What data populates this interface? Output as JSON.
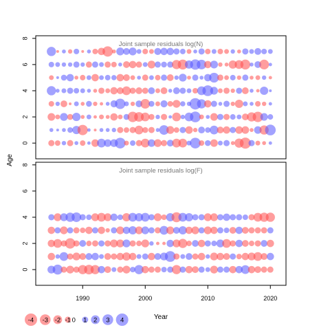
{
  "chart_data": {
    "type": "scatter",
    "ylabel": "Age",
    "xlabel": "Year",
    "xlim": [
      1982.5,
      2022.5
    ],
    "x_ticks": [
      1990,
      2000,
      2010,
      2020
    ],
    "colors": {
      "negative": "#ff4d4d",
      "positive": "#5555ff"
    },
    "bubble_scale_note": "bubble area proportional to |residual|; red = negative, blue = positive",
    "legend": {
      "placement": "bottom-left",
      "values": [
        -4,
        -3,
        -2,
        -1,
        0,
        1,
        2,
        3,
        4
      ],
      "labels": [
        "-4",
        "-3",
        "-2",
        "-1",
        "0",
        "1",
        "2",
        "3",
        "4"
      ]
    },
    "panels": [
      {
        "title": "Joint sample residuals log(N)",
        "ylim": [
          -1.2,
          8.2
        ],
        "y_ticks": [
          0,
          2,
          4,
          6,
          8
        ],
        "ages": [
          0,
          1,
          2,
          3,
          4,
          5,
          6,
          7
        ],
        "years": [
          1985,
          1986,
          1987,
          1988,
          1989,
          1990,
          1991,
          1992,
          1993,
          1994,
          1995,
          1996,
          1997,
          1998,
          1999,
          2000,
          2001,
          2002,
          2003,
          2004,
          2005,
          2006,
          2007,
          2008,
          2009,
          2010,
          2011,
          2012,
          2013,
          2014,
          2015,
          2016,
          2017,
          2018,
          2019,
          2020
        ],
        "residuals": [
          [
            -1.0,
            -0.8,
            0.5,
            -1.0,
            0.4,
            -0.8,
            0.3,
            -1.5,
            2.0,
            1.5,
            1.6,
            3.0,
            -0.6,
            0.8,
            -1.0,
            -2.0,
            1.5,
            -1.6,
            -1.0,
            1.2,
            -2.0,
            -2.0,
            0.6,
            3.0,
            -0.8,
            0.9,
            -1.5,
            0.6,
            1.0,
            -0.4,
            -2.2,
            -3.2,
            1.0,
            -0.6,
            -0.4,
            0.3
          ],
          [
            0.4,
            0.2,
            0.4,
            0.8,
            1.8,
            -2.8,
            0.3,
            -0.2,
            0.4,
            0.4,
            0.5,
            -1.0,
            -0.8,
            -1.0,
            -2.0,
            -0.9,
            -1.0,
            0.4,
            2.4,
            -1.6,
            -0.8,
            1.0,
            -1.5,
            -0.5,
            1.2,
            0.8,
            2.0,
            -1.2,
            -1.4,
            1.0,
            -1.5,
            -1.5,
            -0.4,
            1.5,
            -2.2,
            3.0
          ],
          [
            -1.5,
            -0.6,
            1.6,
            -0.9,
            1.8,
            -0.4,
            0.6,
            -0.3,
            -0.6,
            -0.4,
            -1.4,
            -0.6,
            0.9,
            -2.8,
            -2.4,
            -2.0,
            -0.9,
            0.5,
            -1.0,
            0.3,
            -2.0,
            0.5,
            2.0,
            3.0,
            -0.6,
            0.4,
            -1.5,
            1.0,
            -1.0,
            0.8,
            0.6,
            -1.2,
            -2.2,
            -2.8,
            1.5,
            0.8
          ],
          [
            -0.8,
            0.5,
            -1.2,
            -0.2,
            0.6,
            -0.4,
            0.9,
            -0.5,
            -0.3,
            0.4,
            1.3,
            2.8,
            0.6,
            -0.5,
            1.2,
            -2.4,
            0.9,
            -0.6,
            1.3,
            -0.8,
            -1.6,
            0.7,
            0.5,
            3.4,
            2.2,
            -1.4,
            1.0,
            0.4,
            1.0,
            -0.5,
            -1.8,
            0.6,
            0.4,
            -0.8,
            -0.5,
            0.3
          ],
          [
            2.2,
            0.4,
            0.6,
            1.0,
            0.8,
            0.6,
            0.4,
            -0.4,
            -1.0,
            -0.6,
            -1.4,
            -1.2,
            -2.0,
            -1.0,
            -1.2,
            -1.0,
            1.2,
            -0.6,
            -1.2,
            0.4,
            1.2,
            1.0,
            0.6,
            -0.8,
            2.0,
            3.0,
            1.6,
            -0.6,
            -1.0,
            -0.5,
            1.0,
            -1.2,
            0.4,
            -0.3,
            1.8,
            0.2
          ],
          [
            -0.6,
            0.2,
            0.9,
            1.4,
            -0.4,
            -0.8,
            0.6,
            -1.4,
            0.6,
            0.8,
            0.7,
            -1.4,
            -1.2,
            -0.6,
            0.4,
            -1.0,
            0.6,
            -0.8,
            1.0,
            -1.2,
            0.5,
            1.6,
            -0.4,
            1.0,
            0.4,
            1.4,
            2.5,
            -1.0,
            -0.6,
            0.8,
            -0.5,
            1.0,
            -0.4,
            -0.6,
            0.5,
            -0.3
          ],
          [
            0.8,
            0.6,
            0.5,
            0.5,
            1.0,
            0.5,
            -1.0,
            1.0,
            0.6,
            -1.0,
            -0.8,
            0.4,
            -1.2,
            -1.4,
            -1.0,
            0.6,
            -1.6,
            1.0,
            0.9,
            1.0,
            -2.2,
            -2.6,
            1.8,
            2.8,
            2.4,
            -1.4,
            1.6,
            -0.5,
            -0.4,
            -1.8,
            -2.0,
            -2.6,
            0.4,
            1.2,
            -2.5,
            0.3
          ],
          [
            2.2,
            -0.2,
            0.4,
            -0.5,
            0.8,
            -0.2,
            0.4,
            -0.8,
            -1.4,
            -2.8,
            -0.4,
            1.6,
            1.2,
            1.6,
            0.6,
            -0.8,
            -0.6,
            1.3,
            1.4,
            1.4,
            1.0,
            0.8,
            -0.6,
            0.4,
            1.0,
            -0.8,
            0.6,
            -0.8,
            -0.6,
            0.5,
            -0.4,
            1.0,
            0.6,
            1.2,
            0.8,
            0.6
          ]
        ]
      },
      {
        "title": "Joint sample residuals log(F)",
        "ylim": [
          -1.2,
          8.2
        ],
        "y_ticks": [
          0,
          2,
          4,
          6,
          8
        ],
        "ages": [
          0,
          1,
          2,
          3,
          4
        ],
        "years": [
          1985,
          1986,
          1987,
          1988,
          1989,
          1990,
          1991,
          1992,
          1993,
          1994,
          1995,
          1996,
          1997,
          1998,
          1999,
          2000,
          2001,
          2002,
          2003,
          2004,
          2005,
          2006,
          2007,
          2008,
          2009,
          2010,
          2011,
          2012,
          2013,
          2014,
          2015,
          2016,
          2017,
          2018,
          2019,
          2020
        ],
        "residuals": [
          [
            1.6,
            2.6,
            -1.0,
            -1.6,
            -1.0,
            -2.2,
            -2.4,
            -2.2,
            1.4,
            -1.2,
            0.6,
            -1.0,
            -1.6,
            0.8,
            2.2,
            -1.4,
            -1.0,
            -1.0,
            0.8,
            1.0,
            -2.2,
            1.0,
            -1.4,
            -1.2,
            1.0,
            0.6,
            -1.6,
            1.0,
            1.0,
            -1.4,
            1.4,
            2.0,
            -1.4,
            -1.2,
            -1.0,
            -1.0
          ],
          [
            -1.4,
            0.5,
            2.0,
            -1.0,
            -1.6,
            -1.2,
            1.2,
            1.4,
            0.6,
            -1.2,
            -1.0,
            -1.4,
            -1.8,
            -1.4,
            0.6,
            1.0,
            -1.4,
            1.2,
            1.6,
            3.0,
            -1.0,
            0.6,
            1.2,
            -1.0,
            -1.4,
            0.5,
            -1.6,
            -1.4,
            -1.2,
            1.0,
            -0.8,
            -1.4,
            -1.6,
            -2.0,
            -1.2,
            1.4
          ],
          [
            -1.4,
            -2.0,
            -1.0,
            -2.8,
            -1.0,
            1.2,
            -0.8,
            -1.0,
            1.0,
            -1.0,
            -1.6,
            -1.6,
            1.6,
            -1.0,
            -0.8,
            -1.6,
            0.5,
            -0.3,
            -0.3,
            1.4,
            -1.6,
            -2.2,
            -0.8,
            1.2,
            -1.4,
            1.0,
            0.8,
            1.6,
            -2.0,
            -1.0,
            1.4,
            -1.2,
            -0.8,
            -1.0,
            1.2,
            -1.4
          ],
          [
            -1.4,
            1.0,
            -1.6,
            1.0,
            -1.0,
            -0.8,
            -1.4,
            1.0,
            -1.4,
            -0.5,
            1.0,
            -1.6,
            1.4,
            1.8,
            -1.6,
            1.6,
            1.0,
            -1.0,
            2.0,
            -1.6,
            1.2,
            1.8,
            -1.4,
            -1.6,
            1.0,
            -1.6,
            -1.4,
            1.0,
            0.8,
            -1.2,
            1.4,
            -1.2,
            -1.0,
            -1.0,
            -1.0,
            1.0
          ],
          [
            1.0,
            -1.6,
            1.6,
            2.2,
            2.4,
            1.0,
            0.8,
            -1.6,
            -2.0,
            -1.6,
            1.4,
            0.8,
            -1.8,
            2.0,
            1.8,
            2.0,
            1.0,
            -1.6,
            -0.8,
            1.8,
            -2.6,
            2.0,
            1.8,
            1.0,
            1.0,
            -1.6,
            -1.6,
            1.0,
            1.4,
            1.0,
            1.0,
            0.8,
            -1.0,
            -2.0,
            -2.2,
            -2.2
          ]
        ]
      }
    ]
  }
}
